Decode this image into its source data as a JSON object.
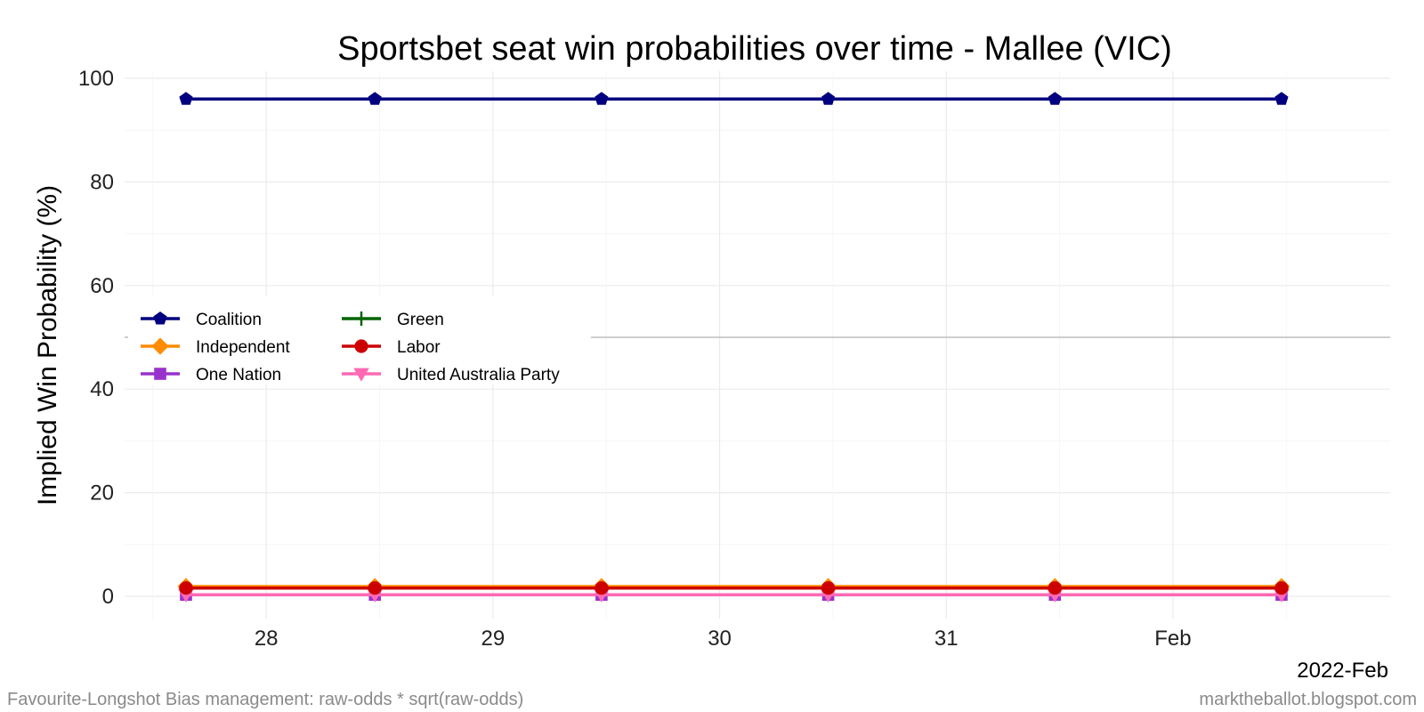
{
  "chart_data": {
    "type": "line",
    "title": "Sportsbet seat win probabilities over time - Mallee (VIC)",
    "xlabel": "",
    "ylabel": "Implied Win Probability (%)",
    "x_sublabel": "2022-Feb",
    "ylim": [
      0,
      100
    ],
    "yticks": [
      0,
      20,
      40,
      60,
      80,
      100
    ],
    "xlim": [
      "2022-01-27 09:00",
      "2022-02-01 23:00"
    ],
    "xticks": [
      {
        "date": "2022-01-28",
        "label": "28"
      },
      {
        "date": "2022-01-29",
        "label": "29"
      },
      {
        "date": "2022-01-30",
        "label": "30"
      },
      {
        "date": "2022-01-31",
        "label": "31"
      },
      {
        "date": "2022-02-01",
        "label": "Feb"
      }
    ],
    "x": [
      "2022-01-27 15:30",
      "2022-01-28 11:30",
      "2022-01-29 11:30",
      "2022-01-30 11:30",
      "2022-01-31 11:30",
      "2022-02-01 11:30"
    ],
    "hline": 50,
    "grid": true,
    "legend_position": "center-left",
    "series": [
      {
        "name": "Coalition",
        "color": "#000080",
        "marker": "pentagon",
        "values": [
          96,
          96,
          96,
          96,
          96,
          96
        ]
      },
      {
        "name": "Green",
        "color": "#006400",
        "marker": "plus",
        "values": [
          1.7,
          1.7,
          1.7,
          1.7,
          1.7,
          1.7
        ]
      },
      {
        "name": "Independent",
        "color": "#ff8c00",
        "marker": "diamond",
        "values": [
          1.9,
          1.9,
          1.9,
          1.9,
          1.9,
          1.9
        ]
      },
      {
        "name": "Labor",
        "color": "#cc0000",
        "marker": "circle",
        "values": [
          1.6,
          1.6,
          1.6,
          1.6,
          1.6,
          1.6
        ]
      },
      {
        "name": "One Nation",
        "color": "#9932cc",
        "marker": "square",
        "values": [
          0.3,
          0.3,
          0.3,
          0.3,
          0.3,
          0.3
        ]
      },
      {
        "name": "United Australia Party",
        "color": "#ff69b4",
        "marker": "triangle-down",
        "values": [
          0.3,
          0.3,
          0.3,
          0.3,
          0.3,
          0.3
        ]
      }
    ]
  },
  "footer": {
    "left": "Favourite-Longshot Bias management: raw-odds * sqrt(raw-odds)",
    "right": "marktheballot.blogspot.com"
  }
}
